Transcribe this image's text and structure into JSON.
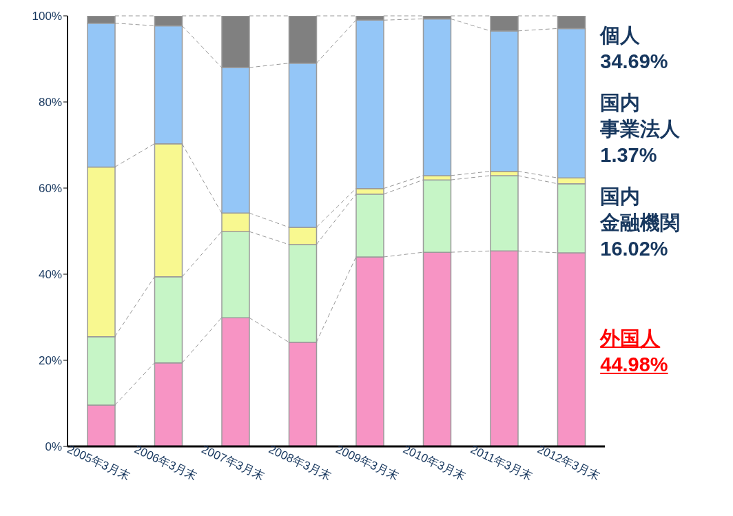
{
  "chart_data": {
    "type": "bar",
    "stacked": true,
    "categories": [
      "2005年3月末",
      "2006年3月末",
      "2007年3月末",
      "2008年3月末",
      "2009年3月末",
      "2010年3月末",
      "2011年3月末",
      "2012年3月末"
    ],
    "series": [
      {
        "name": "外国人",
        "color": "#f794c4",
        "values": [
          9.6,
          19.4,
          29.9,
          24.2,
          44.0,
          45.1,
          45.4,
          44.98
        ]
      },
      {
        "name": "国内金融機関",
        "color": "#c6f5c6",
        "values": [
          15.9,
          20.0,
          20.0,
          22.7,
          14.6,
          16.8,
          17.5,
          16.02
        ]
      },
      {
        "name": "国内事業法人",
        "color": "#f8f890",
        "values": [
          39.4,
          30.9,
          4.3,
          4.0,
          1.3,
          1.0,
          1.0,
          1.37
        ]
      },
      {
        "name": "個人",
        "color": "#94c6f7",
        "values": [
          33.4,
          27.4,
          33.8,
          38.1,
          39.1,
          36.4,
          32.6,
          34.69
        ]
      },
      {
        "color": "#808080",
        "values": [
          1.7,
          2.3,
          12.0,
          11.0,
          1.0,
          0.7,
          3.5,
          2.94
        ]
      }
    ],
    "annotations": [
      "34.69%",
      "1.37%",
      "16.02%",
      "44.98%"
    ],
    "ylim": [
      0,
      100
    ],
    "yticks": [
      {
        "value": 0,
        "label": "0%"
      },
      {
        "value": 20,
        "label": "20%"
      },
      {
        "value": 40,
        "label": "40%"
      },
      {
        "value": 60,
        "label": "60%"
      },
      {
        "value": 80,
        "label": "80%"
      },
      {
        "value": 100,
        "label": "100%"
      }
    ],
    "grid": false,
    "legend": "right"
  }
}
